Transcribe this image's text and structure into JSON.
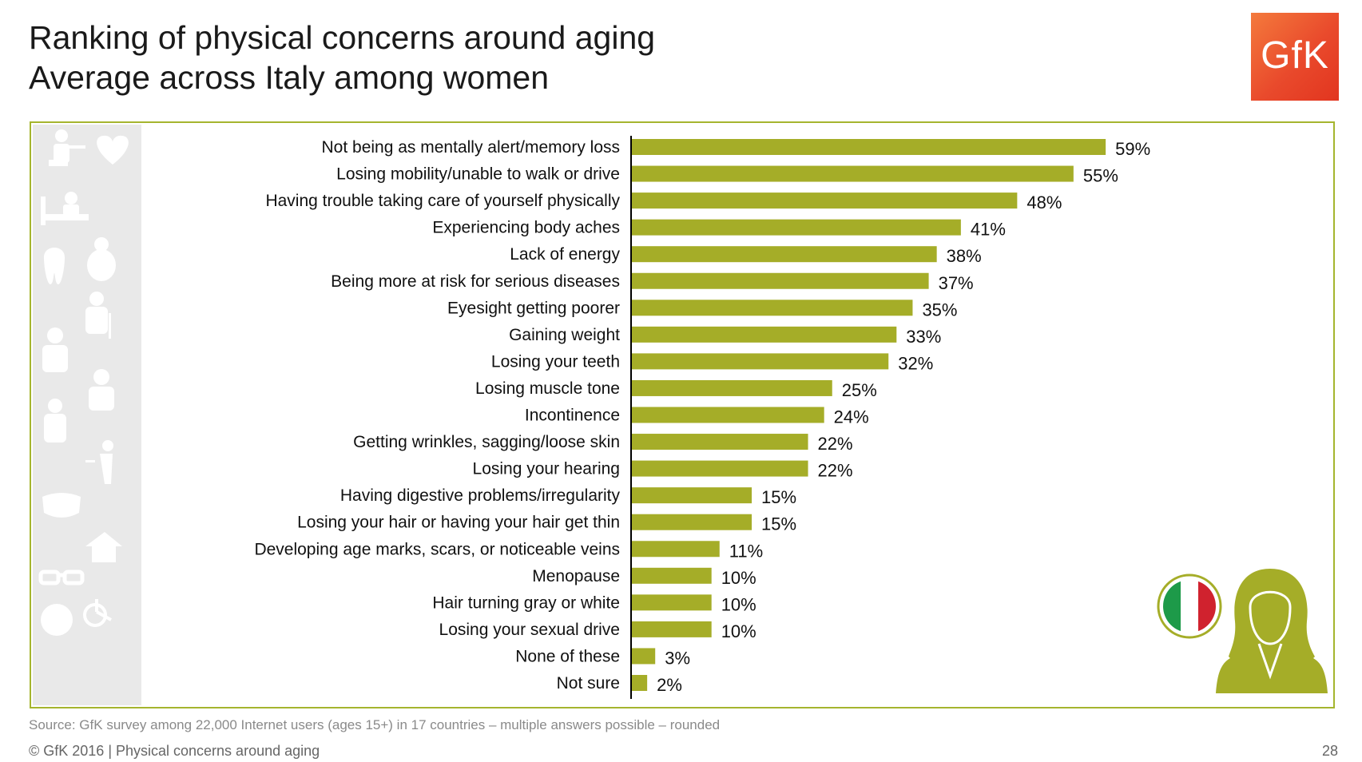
{
  "header": {
    "title_line1": "Ranking of physical concerns around aging",
    "title_line2": "Average across Italy among women"
  },
  "logo": {
    "text": "GfK"
  },
  "colors": {
    "bar": "#a5ad28",
    "frame": "#a5b52e",
    "logo_bg": "#e94a2c",
    "sidebar_bg": "#e9e9e9"
  },
  "icons": {
    "sidebar": [
      "person-at-desk-icon",
      "heartbeat-icon",
      "person-in-bed-icon",
      "tooth-icon",
      "overweight-person-icon",
      "person-with-cane-icon",
      "sad-person-icon",
      "freckled-person-icon",
      "coughing-person-icon",
      "back-pain-icon",
      "dentures-icon",
      "headache-icon",
      "glasses-icon",
      "ear-icon",
      "wheelchair-icon"
    ],
    "flag": "italy-flag-icon",
    "respondent": "woman-silhouette-icon"
  },
  "chart_data": {
    "type": "bar",
    "orientation": "horizontal",
    "title": "Ranking of physical concerns around aging",
    "subtitle": "Average across Italy among women",
    "xlabel": "",
    "ylabel": "",
    "xlim": [
      0,
      60
    ],
    "grid": false,
    "categories": [
      "Not being as mentally alert/memory loss",
      "Losing mobility/unable to walk or drive",
      "Having trouble taking care of yourself physically",
      "Experiencing body aches",
      "Lack of energy",
      "Being more at risk for serious diseases",
      "Eyesight getting poorer",
      "Gaining weight",
      "Losing your teeth",
      "Losing muscle tone",
      "Incontinence",
      "Getting wrinkles, sagging/loose skin",
      "Losing your hearing",
      "Having digestive problems/irregularity",
      "Losing your hair or having your hair get thin",
      "Developing age marks, scars, or noticeable veins",
      "Menopause",
      "Hair turning gray or white",
      "Losing your sexual drive",
      "None of these",
      "Not sure"
    ],
    "values": [
      59,
      55,
      48,
      41,
      38,
      37,
      35,
      33,
      32,
      25,
      24,
      22,
      22,
      15,
      15,
      11,
      10,
      10,
      10,
      3,
      2
    ],
    "value_labels": [
      "59%",
      "55%",
      "48%",
      "41%",
      "38%",
      "37%",
      "35%",
      "33%",
      "32%",
      "25%",
      "24%",
      "22%",
      "22%",
      "15%",
      "15%",
      "11%",
      "10%",
      "10%",
      "10%",
      "3%",
      "2%"
    ]
  },
  "footer": {
    "source": "Source: GfK survey among 22,000 Internet users (ages 15+) in 17 countries – multiple answers possible – rounded",
    "copyright": "© GfK 2016 | Physical concerns around aging",
    "page_number": "28"
  }
}
